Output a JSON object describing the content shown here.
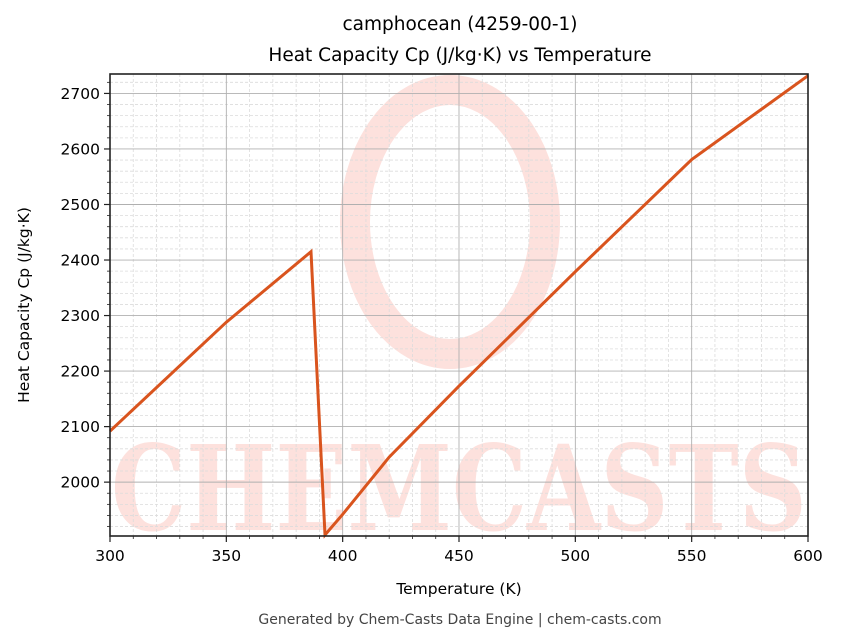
{
  "header": {
    "title_line1": "camphocean (4259-00-1)",
    "title_line2": "Heat Capacity Cp (J/kg·K) vs Temperature"
  },
  "footer": {
    "text": "Generated by Chem-Casts Data Engine | chem-casts.com"
  },
  "watermark": {
    "text": "CHEMCASTS",
    "color": "#fde1dd"
  },
  "colors": {
    "line": "#d9541e",
    "major_grid": "#b0b0b0",
    "minor_grid": "#dcdcdc",
    "axis": "#222222"
  },
  "chart_data": {
    "type": "line",
    "title": "camphocean (4259-00-1)\nHeat Capacity Cp (J/kg·K) vs Temperature",
    "xlabel": "Temperature (K)",
    "ylabel": "Heat Capacity Cp (J/kg·K)",
    "xlim": [
      300,
      600
    ],
    "ylim": [
      1903,
      2735
    ],
    "xticks": [
      300,
      350,
      400,
      450,
      500,
      550,
      600
    ],
    "yticks": [
      2000,
      2100,
      2200,
      2300,
      2400,
      2500,
      2600,
      2700
    ],
    "x_minor_step": 10,
    "y_minor_step": 20,
    "grid": true,
    "legend": null,
    "series": [
      {
        "name": "Cp",
        "x": [
          300,
          350,
          386.4,
          392.4,
          400,
          420,
          450,
          500,
          550,
          600
        ],
        "values": [
          2092,
          2288,
          2415,
          1905,
          1942,
          2045,
          2173,
          2379,
          2581,
          2732
        ]
      }
    ]
  }
}
